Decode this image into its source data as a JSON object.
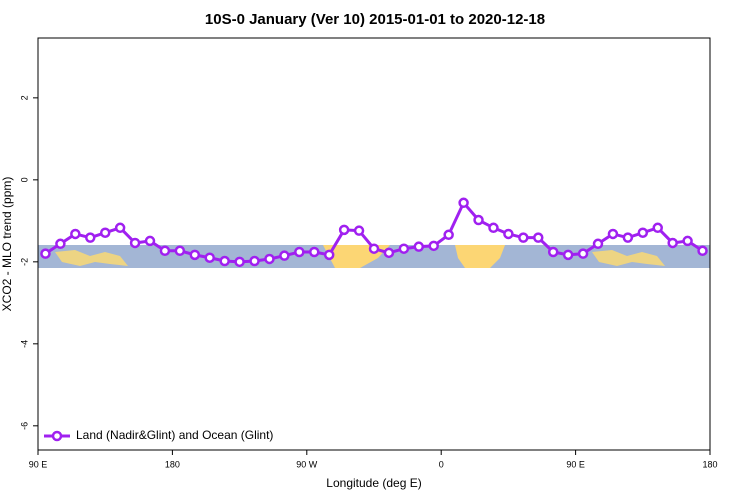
{
  "chart_data": {
    "type": "line",
    "title": "10S-0 January (Ver 10)   2015-01-01 to 2020-12-18",
    "x_label": "Longitude (deg E)",
    "y_label": "XCO2 - MLO trend (ppm)",
    "x": [
      95,
      105,
      115,
      125,
      135,
      145,
      155,
      165,
      175,
      185,
      195,
      205,
      215,
      225,
      235,
      245,
      255,
      265,
      275,
      285,
      295,
      305,
      315,
      325,
      335,
      345,
      355,
      365,
      375,
      385,
      395,
      405,
      415,
      425,
      435,
      445,
      455,
      465,
      475,
      485,
      495,
      505,
      515,
      525,
      535
    ],
    "series": [
      {
        "name": "Land (Nadir&Glint) and Ocean (Glint)",
        "color": "#a020f0",
        "values": [
          -1.8,
          -1.56,
          -1.32,
          -1.41,
          -1.29,
          -1.17,
          -1.54,
          -1.49,
          -1.73,
          -1.73,
          -1.83,
          -1.9,
          -1.98,
          -2.0,
          -1.98,
          -1.93,
          -1.85,
          -1.76,
          -1.76,
          -1.83,
          -1.22,
          -1.24,
          -1.68,
          -1.78,
          -1.68,
          -1.63,
          -1.61,
          -1.34,
          -0.56,
          -0.98,
          -1.17,
          -1.32,
          -1.41,
          -1.41,
          -1.76,
          -1.83,
          -1.8,
          -1.56,
          -1.32,
          -1.41,
          -1.29,
          -1.17,
          -1.54,
          -1.49,
          -1.73
        ]
      }
    ],
    "xlim": [
      90,
      540
    ],
    "xticks": [
      {
        "value": 90,
        "label": "90 E"
      },
      {
        "value": 180,
        "label": "180"
      },
      {
        "value": 270,
        "label": "90 W"
      },
      {
        "value": 360,
        "label": "0"
      },
      {
        "value": 450,
        "label": "90 E"
      },
      {
        "value": 540,
        "label": "180"
      }
    ],
    "ylim": [
      -6.59,
      3.46
    ],
    "yticks": [
      -6,
      -4,
      -2,
      0,
      2
    ],
    "legend": "bottom left"
  }
}
